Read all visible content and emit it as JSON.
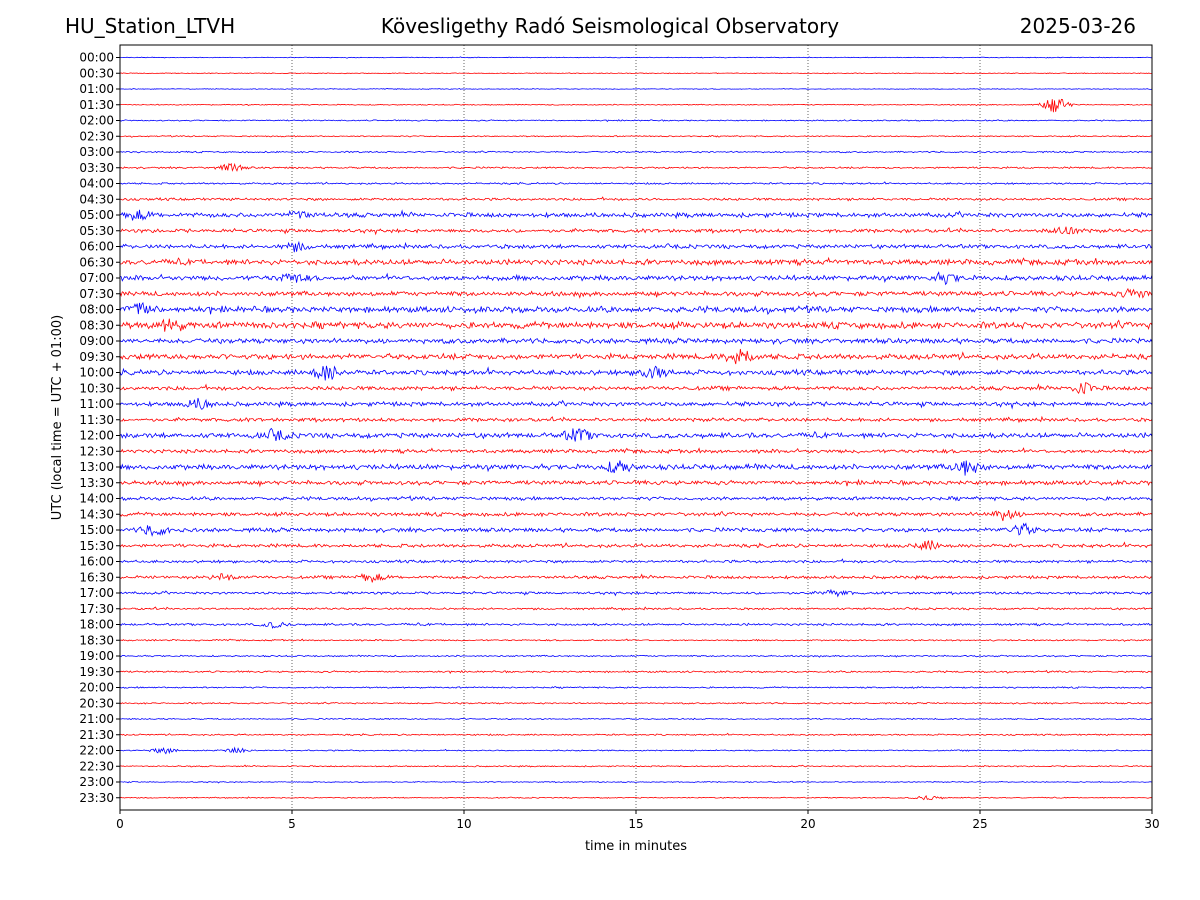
{
  "header": {
    "station": "HU_Station_LTVH",
    "title": "Kövesligethy Radó Seismological Observatory",
    "date": "2025-03-26"
  },
  "chart_data": {
    "type": "line",
    "xlabel": "time in minutes",
    "ylabel": "UTC (local time = UTC + 01:00)",
    "xlim": [
      0,
      30
    ],
    "xticks": [
      0,
      5,
      10,
      15,
      20,
      25,
      30
    ],
    "xtick_labels": [
      "0",
      "5",
      "10",
      "15",
      "20",
      "25",
      "30"
    ],
    "vertical_gridlines": [
      5,
      10,
      15,
      20,
      25
    ],
    "grid_style": "dotted",
    "series_colors": [
      "#0000ff",
      "#ff0000"
    ],
    "rows": [
      "00:00",
      "00:30",
      "01:00",
      "01:30",
      "02:00",
      "02:30",
      "03:00",
      "03:30",
      "04:00",
      "04:30",
      "05:00",
      "05:30",
      "06:00",
      "06:30",
      "07:00",
      "07:30",
      "08:00",
      "08:30",
      "09:00",
      "09:30",
      "10:00",
      "10:30",
      "11:00",
      "11:30",
      "12:00",
      "12:30",
      "13:00",
      "13:30",
      "14:00",
      "14:30",
      "15:00",
      "15:30",
      "16:00",
      "16:30",
      "17:00",
      "17:30",
      "18:00",
      "18:30",
      "19:00",
      "19:30",
      "20:00",
      "20:30",
      "21:00",
      "21:30",
      "22:00",
      "22:30",
      "23:00",
      "23:30"
    ],
    "noise_level": [
      0.3,
      0.3,
      0.3,
      0.4,
      0.5,
      0.5,
      0.6,
      0.7,
      0.7,
      1.0,
      1.8,
      1.4,
      1.6,
      2.2,
      2.0,
      1.9,
      2.4,
      2.6,
      2.0,
      2.2,
      2.0,
      1.6,
      1.7,
      1.4,
      2.0,
      1.5,
      2.1,
      1.7,
      1.4,
      1.5,
      1.6,
      1.4,
      1.1,
      1.2,
      1.0,
      0.8,
      0.9,
      0.6,
      0.6,
      0.7,
      0.6,
      0.6,
      0.5,
      0.6,
      0.5,
      0.5,
      0.4,
      0.4
    ],
    "events": [
      {
        "row": "01:30",
        "t": 27.2,
        "amp": 8
      },
      {
        "row": "03:30",
        "t": 3.2,
        "amp": 3.5
      },
      {
        "row": "05:00",
        "t": 0.5,
        "amp": 4
      },
      {
        "row": "05:00",
        "t": 5.2,
        "amp": 3
      },
      {
        "row": "05:30",
        "t": 27.5,
        "amp": 4
      },
      {
        "row": "06:00",
        "t": 5.1,
        "amp": 3.5
      },
      {
        "row": "07:00",
        "t": 5.0,
        "amp": 4
      },
      {
        "row": "07:00",
        "t": 24.0,
        "amp": 4
      },
      {
        "row": "07:30",
        "t": 29.5,
        "amp": 4
      },
      {
        "row": "08:00",
        "t": 0.6,
        "amp": 5
      },
      {
        "row": "08:30",
        "t": 1.5,
        "amp": 5
      },
      {
        "row": "09:30",
        "t": 18.0,
        "amp": 8
      },
      {
        "row": "10:00",
        "t": 6.0,
        "amp": 7
      },
      {
        "row": "10:00",
        "t": 15.5,
        "amp": 5
      },
      {
        "row": "10:30",
        "t": 28.0,
        "amp": 5
      },
      {
        "row": "11:00",
        "t": 2.3,
        "amp": 4.5
      },
      {
        "row": "12:00",
        "t": 13.3,
        "amp": 6
      },
      {
        "row": "12:00",
        "t": 4.5,
        "amp": 4
      },
      {
        "row": "13:00",
        "t": 24.6,
        "amp": 7
      },
      {
        "row": "13:00",
        "t": 14.5,
        "amp": 5
      },
      {
        "row": "14:30",
        "t": 25.7,
        "amp": 5
      },
      {
        "row": "15:00",
        "t": 1.0,
        "amp": 5
      },
      {
        "row": "15:00",
        "t": 26.2,
        "amp": 5
      },
      {
        "row": "15:30",
        "t": 23.5,
        "amp": 4
      },
      {
        "row": "16:30",
        "t": 7.3,
        "amp": 4
      },
      {
        "row": "16:30",
        "t": 3.0,
        "amp": 3
      },
      {
        "row": "17:00",
        "t": 20.8,
        "amp": 3
      },
      {
        "row": "18:00",
        "t": 4.5,
        "amp": 2.5
      },
      {
        "row": "22:00",
        "t": 1.3,
        "amp": 2.5
      },
      {
        "row": "22:00",
        "t": 3.4,
        "amp": 2.5
      },
      {
        "row": "23:30",
        "t": 23.5,
        "amp": 2
      }
    ]
  }
}
